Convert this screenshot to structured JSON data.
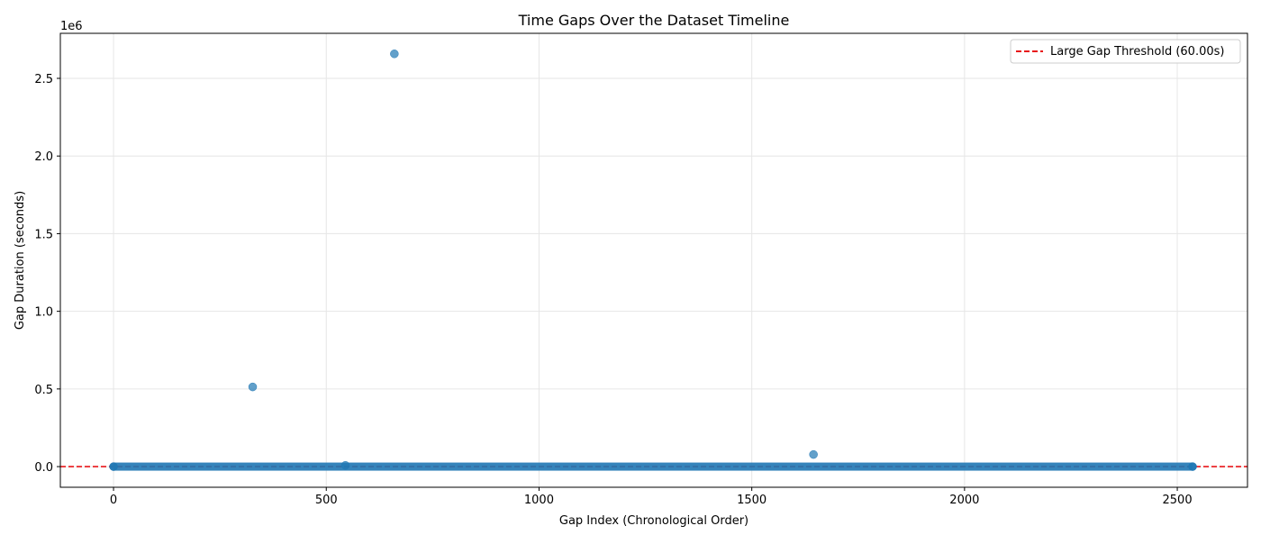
{
  "chart_data": {
    "type": "scatter",
    "title": "Time Gaps Over the Dataset Timeline",
    "xlabel": "Gap Index (Chronological Order)",
    "ylabel": "Gap Duration (seconds)",
    "y_offset_label": "1e6",
    "xlim": [
      -125,
      2665
    ],
    "ylim": [
      -133000,
      2790000
    ],
    "xticks": [
      0,
      500,
      1000,
      1500,
      2000,
      2500
    ],
    "xtick_labels": [
      "0",
      "500",
      "1000",
      "1500",
      "2000",
      "2500"
    ],
    "yticks": [
      0,
      500000,
      1000000,
      1500000,
      2000000,
      2500000
    ],
    "ytick_labels": [
      "0.0",
      "0.5",
      "1.0",
      "1.5",
      "2.0",
      "2.5"
    ],
    "grid": true,
    "legend_position": "upper right",
    "baseline": {
      "x_start": 0,
      "x_end": 2536,
      "value": 0
    },
    "series": [
      {
        "name": "",
        "color": "#1f77b4",
        "points": [
          {
            "x": 327,
            "y": 513000
          },
          {
            "x": 660,
            "y": 2658000
          },
          {
            "x": 545,
            "y": 8000
          },
          {
            "x": 1645,
            "y": 78000
          },
          {
            "x": 0,
            "y": 0
          },
          {
            "x": 2536,
            "y": 0
          }
        ]
      }
    ],
    "threshold": {
      "label": "Large Gap Threshold (60.00s)",
      "value": 60,
      "color": "#e8171a",
      "style": "dashed"
    }
  }
}
